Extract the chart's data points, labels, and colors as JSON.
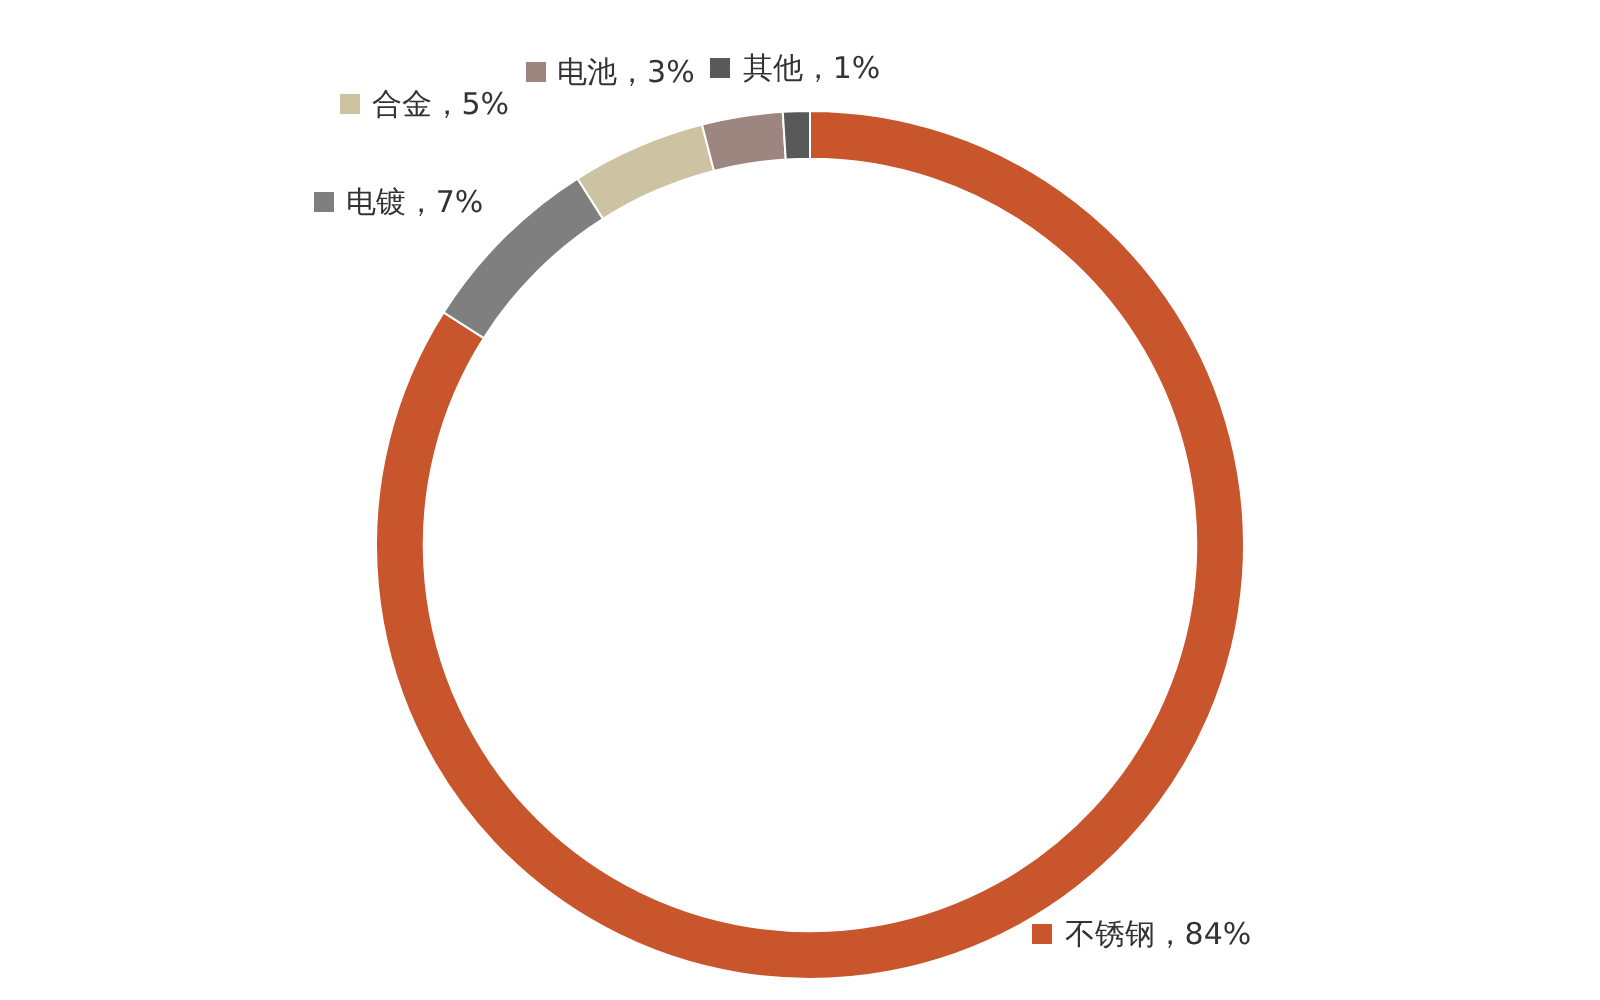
{
  "chart_data": {
    "type": "donut",
    "categories": [
      "不锈钢",
      "电镀",
      "合金",
      "电池",
      "其他"
    ],
    "values": [
      84,
      7,
      5,
      3,
      1
    ],
    "colors": [
      "#c8552c",
      "#7f7f7f",
      "#cdc3a3",
      "#9e8680",
      "#595959"
    ],
    "value_labels": [
      "84%",
      "7%",
      "5%",
      "3%",
      "1%"
    ],
    "legend": "top"
  }
}
